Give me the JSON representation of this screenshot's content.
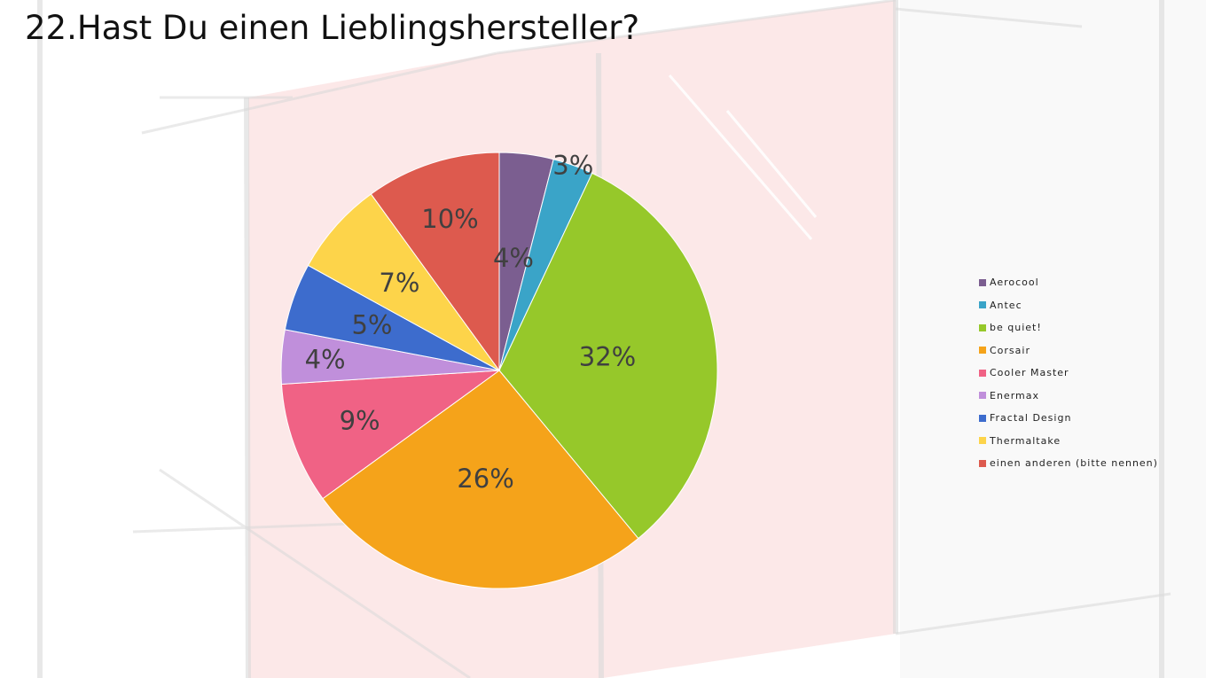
{
  "chart_data": {
    "type": "pie",
    "title": "22.Hast Du einen Lieblingshersteller?",
    "legend_position": "right",
    "slices": [
      {
        "name": "Aerocool",
        "value": 4,
        "label": "4%",
        "color": "#7b5e90"
      },
      {
        "name": "Antec",
        "value": 3,
        "label": "3%",
        "color": "#3aa4c8"
      },
      {
        "name": "be quiet!",
        "value": 32,
        "label": "32%",
        "color": "#96c82a"
      },
      {
        "name": "Corsair",
        "value": 26,
        "label": "26%",
        "color": "#f5a31a"
      },
      {
        "name": "Cooler Master",
        "value": 9,
        "label": "9%",
        "color": "#f06285"
      },
      {
        "name": "Enermax",
        "value": 4,
        "label": "4%",
        "color": "#c08fdb"
      },
      {
        "name": "Fractal Design",
        "value": 5,
        "label": "5%",
        "color": "#3d6ccd"
      },
      {
        "name": "Thermaltake",
        "value": 7,
        "label": "7%",
        "color": "#fdd44a"
      },
      {
        "name": "einen anderen (bitte nennen)",
        "value": 10,
        "label": "10%",
        "color": "#dd5a4e"
      }
    ]
  }
}
